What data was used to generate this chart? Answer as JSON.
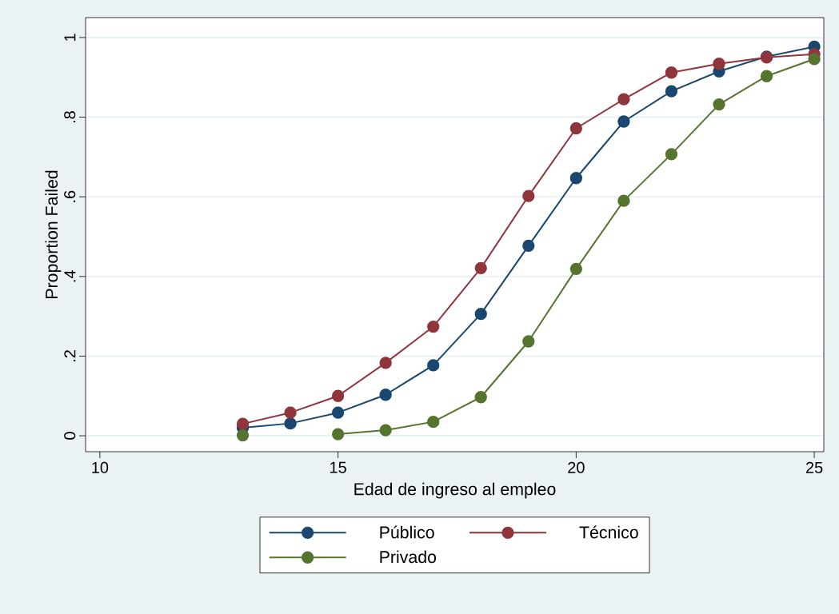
{
  "chart_data": {
    "type": "line",
    "xlabel": "Edad de ingreso al empleo",
    "ylabel": "Proportion Failed",
    "x": [
      13,
      14,
      15,
      16,
      17,
      18,
      19,
      20,
      21,
      22,
      23,
      24,
      25
    ],
    "series": [
      {
        "name": "Público",
        "color": "#1a476f",
        "values": [
          0.02,
          0.031,
          0.058,
          0.103,
          0.177,
          0.306,
          0.477,
          0.647,
          0.789,
          0.865,
          0.915,
          0.952,
          0.977
        ]
      },
      {
        "name": "Técnico",
        "color": "#90353b",
        "values": [
          0.03,
          0.058,
          0.1,
          0.183,
          0.274,
          0.421,
          0.602,
          0.772,
          0.845,
          0.912,
          0.934,
          0.95,
          0.958
        ]
      },
      {
        "name": "Privado",
        "color": "#55752f",
        "values": [
          0.001,
          null,
          0.004,
          0.014,
          0.035,
          0.097,
          0.237,
          0.419,
          0.59,
          0.707,
          0.832,
          0.903,
          0.946
        ]
      }
    ],
    "xlim": [
      9.7,
      25.2
    ],
    "ylim": [
      -0.04,
      1.05
    ],
    "xticks": [
      10,
      15,
      20,
      25
    ],
    "yticks": [
      0,
      {
        "value": 0.2,
        "label": ".2"
      },
      {
        "value": 0.4,
        "label": ".4"
      },
      {
        "value": 0.6,
        "label": ".6"
      },
      {
        "value": 0.8,
        "label": ".8"
      },
      1
    ],
    "grid": "y",
    "legend": "bottom",
    "marker": "circle",
    "line_style": "solid"
  }
}
